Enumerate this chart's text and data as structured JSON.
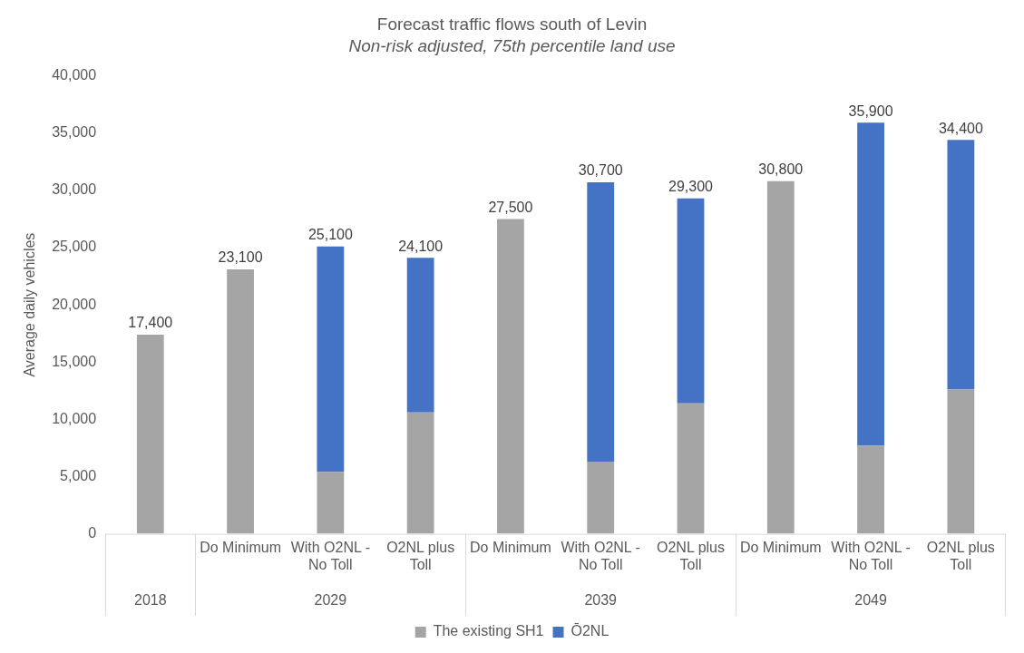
{
  "chart_data": {
    "type": "bar",
    "title": "Forecast traffic flows south of Levin",
    "subtitle": "Non-risk adjusted, 75th percentile land use",
    "ylabel": "Average daily vehicles",
    "categories": [
      null,
      "Do Minimum",
      "With O2NL - No Toll",
      "O2NL plus Toll",
      "Do Minimum",
      "With O2NL - No Toll",
      "O2NL plus Toll",
      "Do Minimum",
      "With O2NL - No Toll",
      "O2NL plus Toll"
    ],
    "stacked": true,
    "series": [
      {
        "name": "The existing SH1",
        "color": "#a5a5a5",
        "values": [
          17400,
          23100,
          5400,
          10600,
          27500,
          6300,
          11400,
          30800,
          7700,
          12600
        ]
      },
      {
        "name": "Ō2NL",
        "color": "#4472c4",
        "values": [
          null,
          null,
          19700,
          13500,
          null,
          24400,
          17900,
          null,
          28200,
          21800
        ]
      }
    ],
    "totals": [
      "17,400",
      "23,100",
      "25,100",
      "24,100",
      "27,500",
      "30,700",
      "29,300",
      "30,800",
      "35,900",
      "34,400"
    ],
    "annotations": [
      "2018",
      "2029",
      "2039",
      "2049"
    ],
    "ylim": [
      0,
      40000
    ],
    "yticks": [
      0,
      {
        "value": 5000,
        "label": "5,000"
      },
      {
        "value": 10000,
        "label": "10,000"
      },
      {
        "value": 15000,
        "label": "15,000"
      },
      {
        "value": 20000,
        "label": "20,000"
      },
      {
        "value": 25000,
        "label": "25,000"
      },
      {
        "value": 30000,
        "label": "30,000"
      },
      {
        "value": 35000,
        "label": "35,000"
      },
      {
        "value": 40000,
        "label": "40,000"
      }
    ],
    "grid": false,
    "legend": "bottom"
  }
}
